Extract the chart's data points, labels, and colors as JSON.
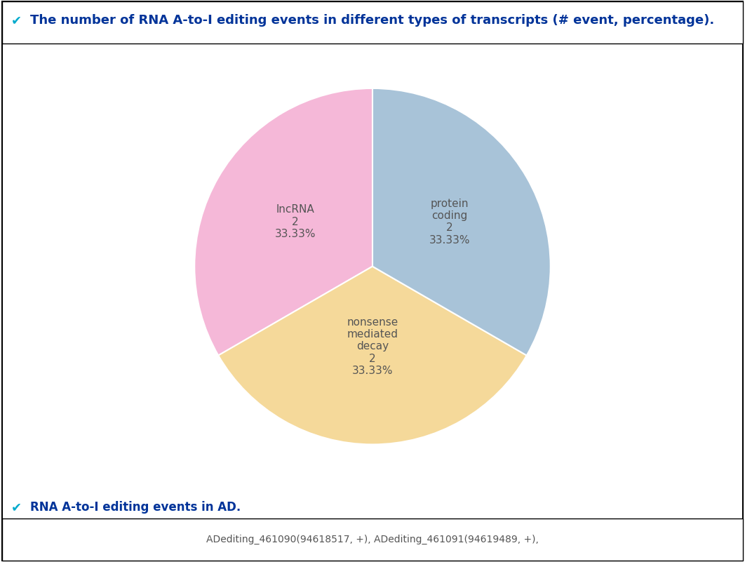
{
  "title": "The number of RNA A-to-I editing events in different types of transcripts (# event, percentage).",
  "footer_label": "RNA A-to-I editing events in AD.",
  "footer_text": "ADediting_461090(94618517, +), ADediting_461091(94619489, +),",
  "slices": [
    {
      "label": "lncRNA\n2\n33.33%",
      "value": 2,
      "color": "#F5B8D8",
      "pct": 33.33
    },
    {
      "label": "protein\ncoding\n2\n33.33%",
      "value": 2,
      "color": "#F5D99A",
      "pct": 33.33
    },
    {
      "label": "nonsense\nmediated\ndecay\n2\n33.33%",
      "value": 2,
      "color": "#A8C3D8",
      "pct": 33.33
    }
  ],
  "startangle": 90,
  "background_color": "#ffffff",
  "title_color": "#003399",
  "title_fontsize": 13,
  "label_fontsize": 11,
  "footer_fontsize": 12,
  "footer_text_fontsize": 10,
  "checkmark_color": "#009900",
  "label_color": "#555555"
}
